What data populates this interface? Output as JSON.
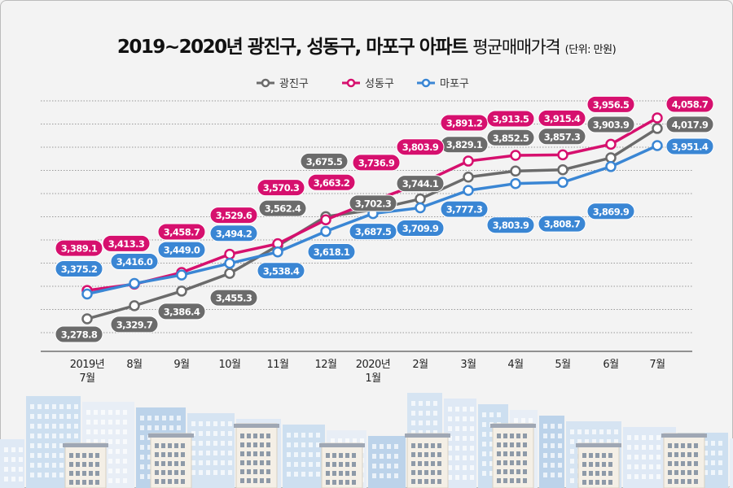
{
  "chart_data": {
    "type": "line",
    "title": "2019~2020년 광진구, 성동구, 마포구 아파트",
    "title_suffix": "평균매매가격",
    "unit": "(단위: 만원)",
    "categories": [
      [
        "2019년",
        "7월"
      ],
      [
        "8월"
      ],
      [
        "9월"
      ],
      [
        "10월"
      ],
      [
        "11월"
      ],
      [
        "12월"
      ],
      [
        "2020년",
        "1월"
      ],
      [
        "2월"
      ],
      [
        "3월"
      ],
      [
        "4월"
      ],
      [
        "5월"
      ],
      [
        "6월"
      ],
      [
        "7월"
      ]
    ],
    "ylim": [
      3200,
      4100
    ],
    "grid": true,
    "legend_position": "top-center",
    "series": [
      {
        "name": "광진구",
        "color": "#6b6b6b",
        "values": [
          3278.8,
          3329.7,
          3386.4,
          3455.3,
          3562.4,
          3675.5,
          3702.3,
          3744.1,
          3829.1,
          3852.5,
          3857.3,
          3903.9,
          4017.9
        ],
        "labels": [
          "3,278.8",
          "3,329.7",
          "3,386.4",
          "3,455.3",
          "3,562.4",
          "3,675.5",
          "3,702.3",
          "3,744.1",
          "3,829.1",
          "3,852.5",
          "3,857.3",
          "3,903.9",
          "4,017.9"
        ]
      },
      {
        "name": "성동구",
        "color": "#d6106e",
        "values": [
          3389.1,
          3413.3,
          3458.7,
          3529.6,
          3570.3,
          3663.2,
          3736.9,
          3803.9,
          3891.2,
          3913.5,
          3915.4,
          3956.5,
          4058.7
        ],
        "labels": [
          "3,389.1",
          "3,413.3",
          "3,458.7",
          "3,529.6",
          "3,570.3",
          "3,663.2",
          "3,736.9",
          "3,803.9",
          "3,891.2",
          "3,913.5",
          "3,915.4",
          "3,956.5",
          "4,058.7"
        ]
      },
      {
        "name": "마포구",
        "color": "#3a86d4",
        "values": [
          3375.2,
          3416.0,
          3449.0,
          3494.2,
          3538.4,
          3618.1,
          3687.5,
          3709.9,
          3777.3,
          3803.9,
          3808.7,
          3869.9,
          3951.4
        ],
        "labels": [
          "3,375.2",
          "3,416.0",
          "3,449.0",
          "3,494.2",
          "3,538.4",
          "3,618.1",
          "3,687.5",
          "3,709.9",
          "3,777.3",
          "3,803.9",
          "3,808.7",
          "3,869.9",
          "3,951.4"
        ]
      }
    ]
  }
}
